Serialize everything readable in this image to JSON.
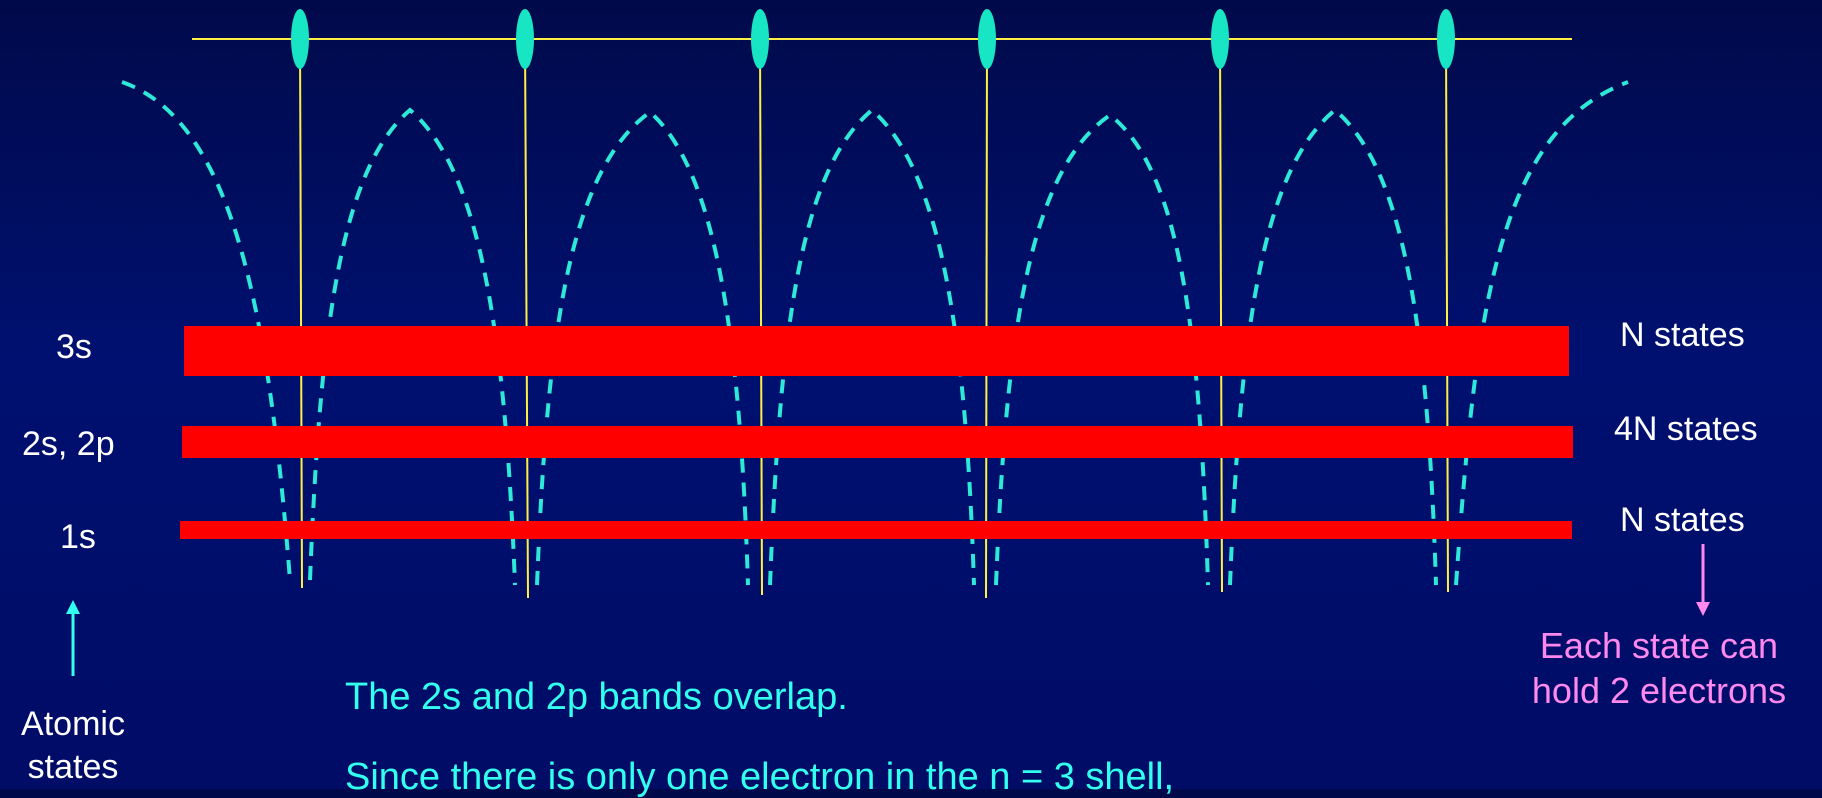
{
  "levels": [
    {
      "label": "3s",
      "states": "N states"
    },
    {
      "label": "2s, 2p",
      "states": "4N states"
    },
    {
      "label": "1s",
      "states": "N states"
    }
  ],
  "axis_label": {
    "line1": "Atomic",
    "line2": "states"
  },
  "note": {
    "line1": "Each state can",
    "line2": "hold 2 electrons"
  },
  "text": {
    "line1": "The 2s and 2p bands overlap.",
    "line2": "Since there is only one electron in the n = 3 shell,"
  },
  "colors": {
    "band": "#ff0000",
    "atom": "#18e5c4",
    "potential": "#2ee8d8",
    "lattice_line": "#ffee44",
    "arrow_up": "#33ffee",
    "arrow_down": "#ff88ee"
  }
}
